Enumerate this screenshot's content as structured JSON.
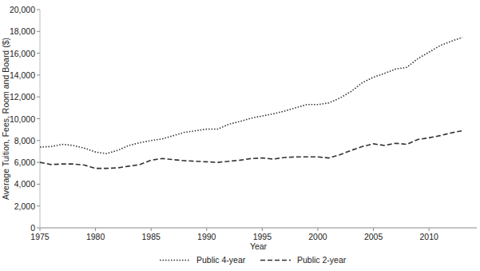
{
  "chart_data": {
    "type": "line",
    "x_label": "Year",
    "y_label": "Average Tuition, Fees, Room and Board ($)",
    "x": [
      1975,
      1976,
      1977,
      1978,
      1979,
      1980,
      1981,
      1982,
      1983,
      1984,
      1985,
      1986,
      1987,
      1988,
      1989,
      1990,
      1991,
      1992,
      1993,
      1994,
      1995,
      1996,
      1997,
      1998,
      1999,
      2000,
      2001,
      2002,
      2003,
      2004,
      2005,
      2006,
      2007,
      2008,
      2009,
      2010,
      2011,
      2012,
      2013
    ],
    "series": [
      {
        "name": "Public 4-year",
        "color": "#333333",
        "line_style": "dotted",
        "values": [
          7400,
          7450,
          7650,
          7550,
          7300,
          6950,
          6800,
          7100,
          7550,
          7800,
          8000,
          8150,
          8450,
          8750,
          8900,
          9050,
          9050,
          9500,
          9750,
          10050,
          10250,
          10450,
          10700,
          11000,
          11300,
          11300,
          11450,
          11900,
          12500,
          13300,
          13800,
          14150,
          14550,
          14700,
          15500,
          16100,
          16700,
          17100,
          17450
        ]
      },
      {
        "name": "Public 2-year",
        "color": "#333333",
        "line_style": "dashed",
        "values": [
          6000,
          5800,
          5850,
          5850,
          5750,
          5450,
          5450,
          5500,
          5650,
          5800,
          6200,
          6350,
          6250,
          6150,
          6100,
          6050,
          6000,
          6100,
          6200,
          6350,
          6400,
          6300,
          6450,
          6500,
          6500,
          6500,
          6400,
          6700,
          7100,
          7450,
          7700,
          7550,
          7750,
          7650,
          8100,
          8250,
          8450,
          8700,
          8900
        ]
      }
    ],
    "xlim": [
      1975,
      2014.3
    ],
    "xticks": [
      1975,
      1980,
      1985,
      1990,
      1995,
      2000,
      2005,
      2010
    ],
    "ylim": [
      0,
      20000
    ],
    "yticks": [
      0,
      {
        "value": 2000,
        "label": "2,000"
      },
      {
        "value": 4000,
        "label": "4,000"
      },
      {
        "value": 6000,
        "label": "6,000"
      },
      {
        "value": 8000,
        "label": "8,000"
      },
      {
        "value": 10000,
        "label": "10,000"
      },
      {
        "value": 12000,
        "label": "12,000"
      },
      {
        "value": 14000,
        "label": "14,000"
      },
      {
        "value": 16000,
        "label": "16,000"
      },
      {
        "value": 18000,
        "label": "18,000"
      },
      {
        "value": 20000,
        "label": "20,000"
      }
    ],
    "grid": false,
    "legend": "bottom"
  }
}
